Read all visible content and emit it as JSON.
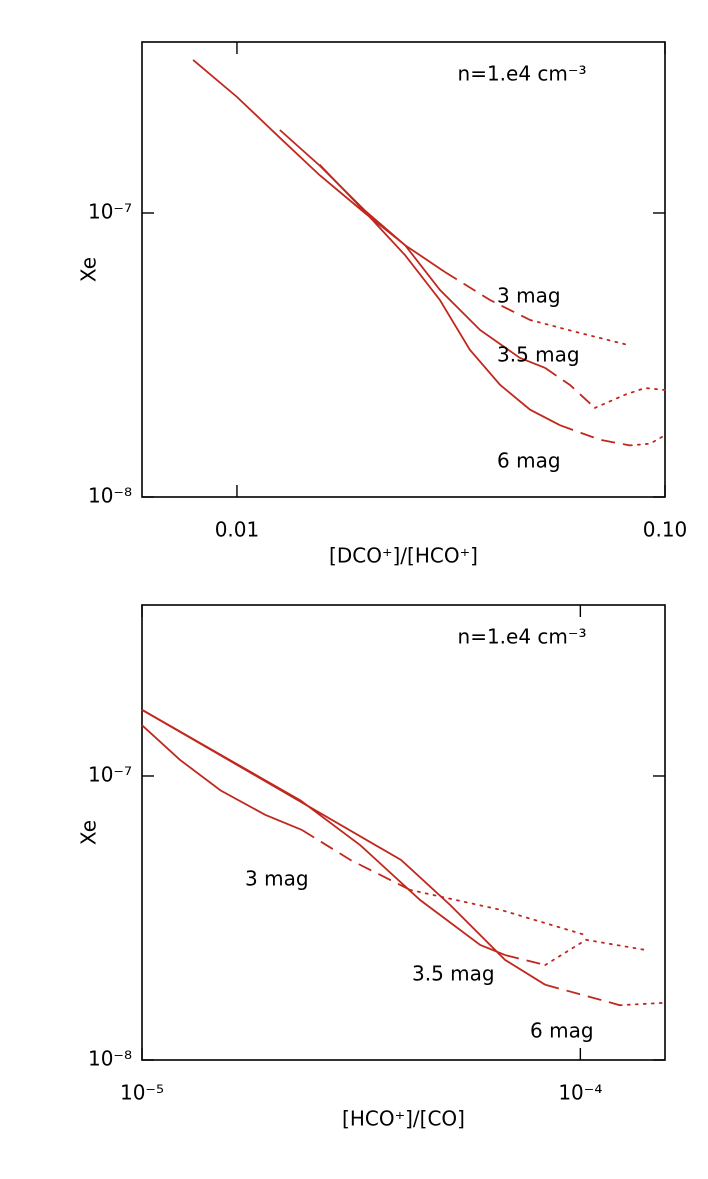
{
  "chart_data": [
    {
      "type": "line",
      "xlog": true,
      "ylog": true,
      "xlim": [
        0.006,
        0.1
      ],
      "ylim": [
        1e-08,
        4e-07
      ],
      "xticks": [
        0.01,
        {
          "value": 0.1,
          "label": "0.10"
        }
      ],
      "yticks": [
        {
          "value": 1e-08,
          "label": "10⁻⁸"
        },
        {
          "value": 1e-07,
          "label": "10⁻⁷"
        }
      ],
      "x_label": "[DCO⁺]/[HCO⁺]",
      "y_label": "Xe",
      "annotation": "n=1.e4 cm⁻³",
      "series": [
        {
          "name": "3 mag",
          "color": "#c0281e",
          "segments": [
            {
              "style": "solid",
              "x": [
                0.0079,
                0.01,
                0.0126,
                0.0156,
                0.0199,
                0.0247,
                0.0306
              ],
              "values": [
                3.46e-07,
                2.56e-07,
                1.84e-07,
                1.36e-07,
                1e-07,
                7.7e-08,
                6.2e-08
              ]
            },
            {
              "style": "dashed",
              "x": [
                0.0306,
                0.039,
                0.0484
              ],
              "values": [
                6.2e-08,
                4.94e-08,
                4.2e-08
              ]
            },
            {
              "style": "dotted",
              "x": [
                0.0484,
                0.0633,
                0.082
              ],
              "values": [
                4.2e-08,
                3.78e-08,
                3.43e-08
              ]
            }
          ]
        },
        {
          "name": "3.5 mag",
          "color": "#c0281e",
          "segments": [
            {
              "style": "solid",
              "x": [
                0.0126,
                0.0156,
                0.0199,
                0.0247,
                0.0298,
                0.037,
                0.0458,
                0.0524
              ],
              "values": [
                1.96e-07,
                1.47e-07,
                1.02e-07,
                7.7e-08,
                5.36e-08,
                3.87e-08,
                3.09e-08,
                2.85e-08
              ]
            },
            {
              "style": "dashed",
              "x": [
                0.0524,
                0.06,
                0.0686
              ],
              "values": [
                2.85e-08,
                2.48e-08,
                2.06e-08
              ]
            },
            {
              "style": "dotted",
              "x": [
                0.0686,
                0.0806,
                0.0898,
                0.1
              ],
              "values": [
                2.06e-08,
                2.29e-08,
                2.42e-08,
                2.38e-08
              ]
            }
          ]
        },
        {
          "name": "6 mag",
          "color": "#c0281e",
          "segments": [
            {
              "style": "solid",
              "x": [
                0.0156,
                0.0199,
                0.0247,
                0.0298,
                0.035,
                0.0412,
                0.0484,
                0.0568
              ],
              "values": [
                1.48e-07,
                1.01e-07,
                7.1e-08,
                4.94e-08,
                3.3e-08,
                2.48e-08,
                2.03e-08,
                1.79e-08
              ]
            },
            {
              "style": "dashed",
              "x": [
                0.0568,
                0.0705,
                0.0828
              ],
              "values": [
                1.79e-08,
                1.59e-08,
                1.52e-08
              ]
            },
            {
              "style": "dotted",
              "x": [
                0.0828,
                0.0923,
                0.1
              ],
              "values": [
                1.52e-08,
                1.54e-08,
                1.65e-08
              ]
            }
          ]
        }
      ]
    },
    {
      "type": "line",
      "xlog": true,
      "ylog": true,
      "xlim": [
        1e-05,
        0.000156
      ],
      "ylim": [
        1e-08,
        4e-07
      ],
      "xticks": [
        {
          "value": 1e-05,
          "label": "10⁻⁵"
        },
        {
          "value": 0.0001,
          "label": "10⁻⁴"
        }
      ],
      "yticks": [
        {
          "value": 1e-08,
          "label": "10⁻⁸"
        },
        {
          "value": 1e-07,
          "label": "10⁻⁷"
        }
      ],
      "x_label": "[HCO⁺]/[CO]",
      "y_label": "Xe",
      "annotation": "n=1.e4 cm⁻³",
      "series": [
        {
          "name": "3 mag",
          "color": "#c0281e",
          "segments": [
            {
              "style": "solid",
              "x": [
                1e-05,
                1.22e-05,
                1.51e-05,
                1.91e-05,
                2.32e-05
              ],
              "values": [
                1.51e-07,
                1.14e-07,
                8.9e-08,
                7.3e-08,
                6.45e-08
              ]
            },
            {
              "style": "dashed",
              "x": [
                2.32e-05,
                2.99e-05,
                4.09e-05
              ],
              "values": [
                6.45e-08,
                5.06e-08,
                3.97e-08
              ]
            },
            {
              "style": "dotted",
              "x": [
                4.09e-05,
                6.57e-05,
                0.000103
              ],
              "values": [
                3.97e-08,
                3.38e-08,
                2.75e-08
              ]
            }
          ]
        },
        {
          "name": "3.5 mag",
          "color": "#c0281e",
          "segments": [
            {
              "style": "solid",
              "x": [
                1e-05,
                2.3e-05,
                3.15e-05,
                4.31e-05,
                5.91e-05,
                6.74e-05
              ],
              "values": [
                1.71e-07,
                8.2e-08,
                5.7e-08,
                3.66e-08,
                2.54e-08,
                2.34e-08
              ]
            },
            {
              "style": "dashed",
              "x": [
                6.74e-05,
                8.32e-05
              ],
              "values": [
                2.34e-08,
                2.16e-08
              ]
            },
            {
              "style": "dotted",
              "x": [
                8.32e-05,
                0.000103,
                0.000141
              ],
              "values": [
                2.16e-08,
                2.65e-08,
                2.44e-08
              ]
            }
          ]
        },
        {
          "name": "6 mag",
          "color": "#c0281e",
          "segments": [
            {
              "style": "solid",
              "x": [
                1e-05,
                3.9e-05,
                5.05e-05,
                6.74e-05,
                8.32e-05
              ],
              "values": [
                1.71e-07,
                5.06e-08,
                3.51e-08,
                2.25e-08,
                1.84e-08
              ]
            },
            {
              "style": "dashed",
              "x": [
                8.32e-05,
                0.000111,
                0.000123
              ],
              "values": [
                1.84e-08,
                1.63e-08,
                1.56e-08
              ]
            },
            {
              "style": "dotted",
              "x": [
                0.000123,
                0.000156
              ],
              "values": [
                1.56e-08,
                1.59e-08
              ]
            }
          ]
        }
      ]
    }
  ]
}
